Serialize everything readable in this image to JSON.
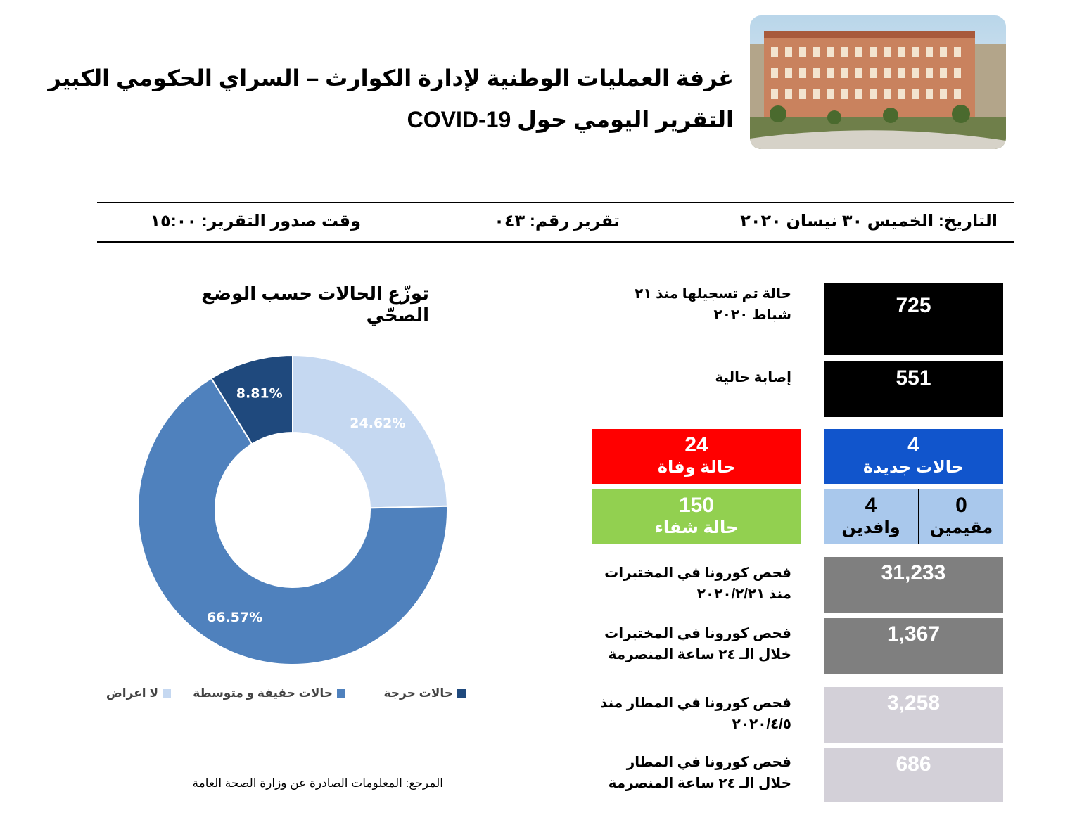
{
  "header": {
    "title_line1": "غرفة العمليات الوطنية لإدارة الكوارث – السراي الحكومي الكبير",
    "title_line2": "التقرير اليومي حول COVID-19"
  },
  "info_bar": {
    "date": "التاريخ: الخميس ٣٠ نيسان ٢٠٢٠",
    "report_number": "تقرير رقم: ٠٤٣",
    "issue_time": "وقت صدور التقرير: ١٥:٠٠"
  },
  "stats": {
    "total_cases": {
      "value": "725",
      "label_line1": "حالة تم تسجيلها منذ ٢١",
      "label_line2": "شباط ٢٠٢٠"
    },
    "active_cases": {
      "value": "551",
      "label": "إصابة حالية"
    },
    "new_cases": {
      "value": "4",
      "label": "حالات جديدة"
    },
    "deaths": {
      "value": "24",
      "label": "حالة وفاة"
    },
    "recovered": {
      "value": "150",
      "label": "حالة شفاء"
    },
    "residents": {
      "value": "0",
      "label": "مقيمين"
    },
    "arrivals": {
      "value": "4",
      "label": "وافدين"
    },
    "lab_tests_total": {
      "value": "31,233",
      "label_line1": "فحص كورونا في المختبرات",
      "label_line2": "منذ ٢٠٢٠/٢/٢١"
    },
    "lab_tests_24h": {
      "value": "1,367",
      "label_line1": "فحص كورونا في المختبرات",
      "label_line2": "خلال الـ ٢٤ ساعة المنصرمة"
    },
    "airport_tests_total": {
      "value": "3,258",
      "label_line1": "فحص كورونا في المطار منذ",
      "label_line2": "٢٠٢٠/٤/٥"
    },
    "airport_tests_24h": {
      "value": "686",
      "label_line1": "فحص كورونا في المطار",
      "label_line2": "خلال الـ ٢٤ ساعة المنصرمة"
    }
  },
  "colors": {
    "black_box": "#000000",
    "new_cases_box": "#1155cc",
    "deaths_box": "#ff0000",
    "recovered_box": "#92d050",
    "resident_arrival_box": "#a9c8ec",
    "lab_box": "#7f7f7f",
    "airport_box": "#d3d0d8"
  },
  "chart_data": {
    "type": "pie",
    "title": "توزّع الحالات حسب الوضع الصحّي",
    "categories": [
      "لا اعراض",
      "حالات خفيفة و متوسطة",
      "حالات حرجة"
    ],
    "values": [
      24.62,
      66.57,
      8.81
    ],
    "labels": [
      "24.62%",
      "66.57%",
      "8.81%"
    ],
    "colors": [
      "#c5d8f1",
      "#4f81bd",
      "#1f497d"
    ],
    "legend": "bottom"
  },
  "footer": {
    "reference": "المرجع: المعلومات الصادرة عن وزارة الصحة العامة"
  }
}
